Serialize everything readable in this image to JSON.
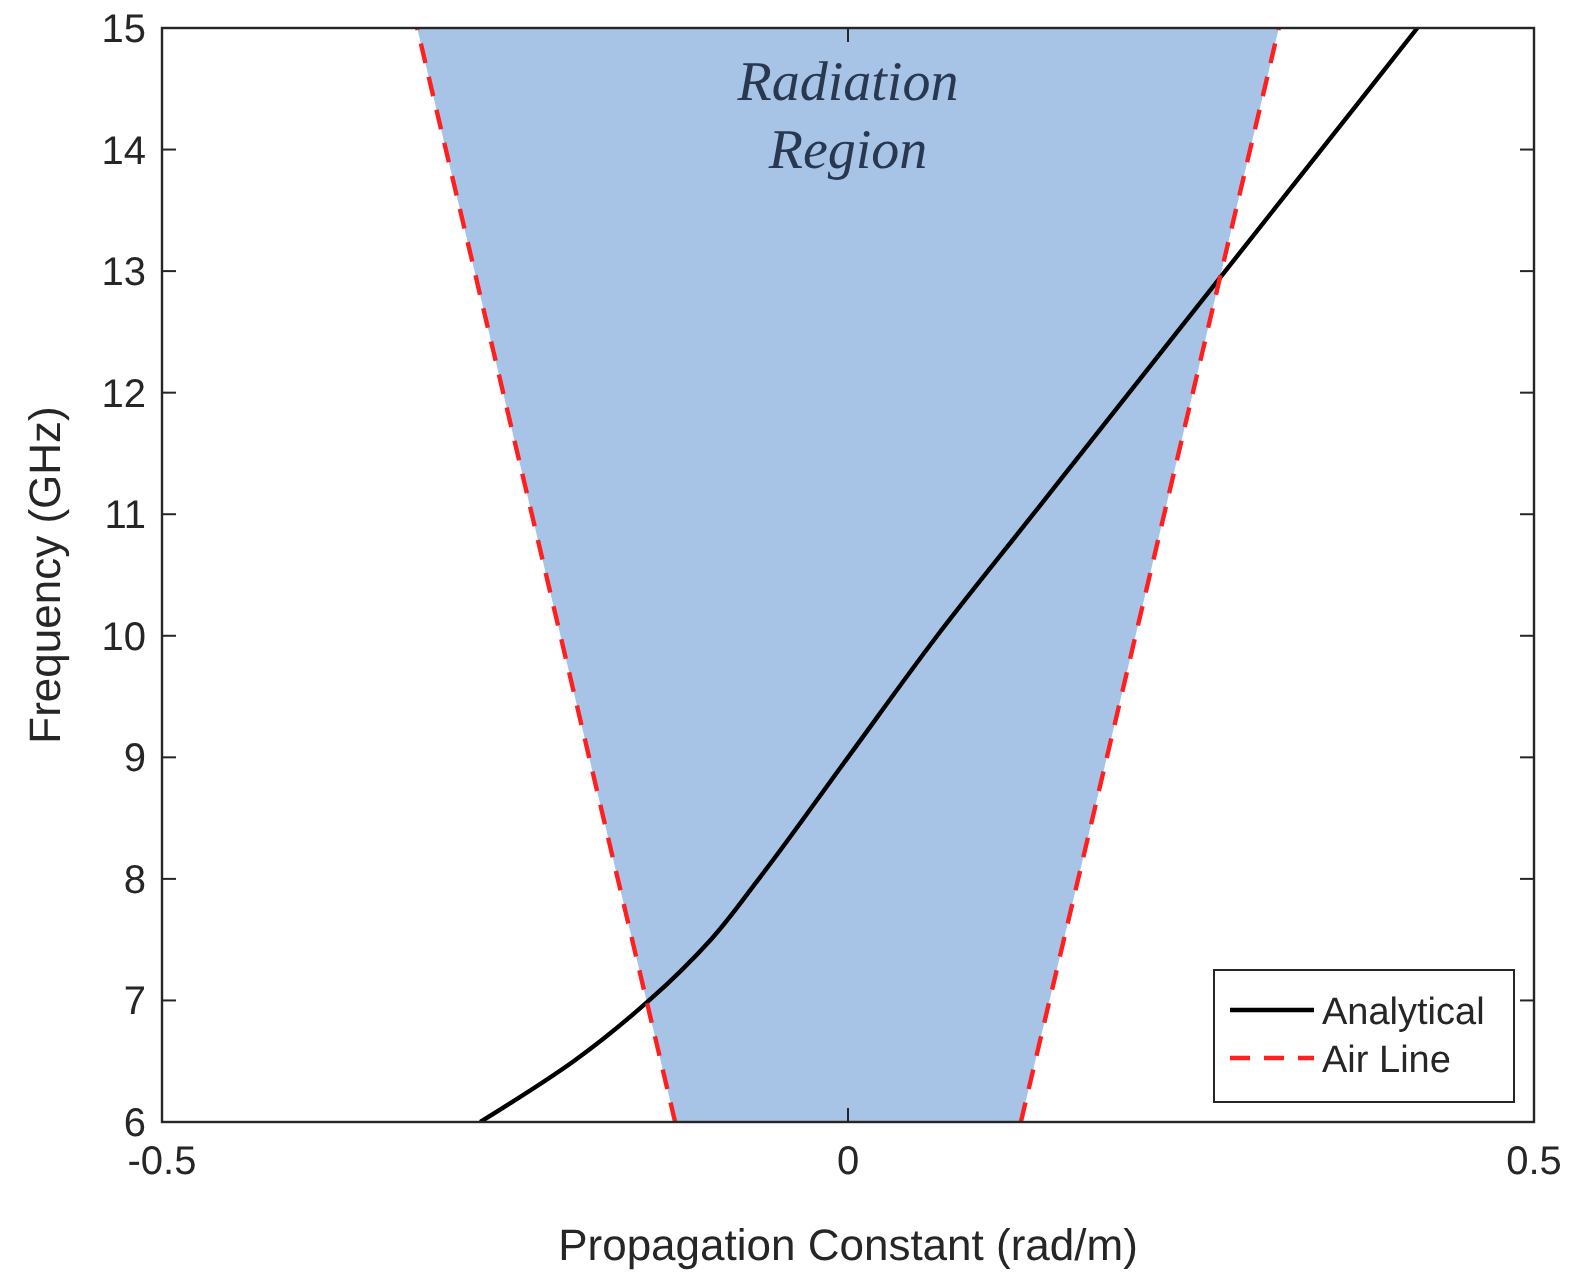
{
  "chart_data": {
    "type": "line",
    "xlabel": "Propagation Constant (rad/m)",
    "ylabel": "Frequency (GHz)",
    "xlim": [
      -0.5,
      0.5
    ],
    "xticks": [
      -0.5,
      0,
      0.5
    ],
    "ylim": [
      6,
      15
    ],
    "yticks": [
      6,
      7,
      8,
      9,
      10,
      11,
      12,
      13,
      14,
      15
    ],
    "grid": false,
    "legend": "bottom right",
    "marker": "none",
    "annotations": [
      "Radiation Region"
    ],
    "series": [
      {
        "type": "area",
        "color": "#a7c3e6",
        "x": [
          -0.314,
          -0.126,
          0.126,
          0.314
        ],
        "values": [
          15,
          6,
          6,
          15
        ]
      },
      {
        "name": "Analytical",
        "color": "#000000",
        "line_style": "solid",
        "x": [
          -0.268,
          -0.2,
          -0.145,
          -0.1,
          -0.065,
          0.0,
          0.065,
          0.135,
          0.205,
          0.275,
          0.345,
          0.415
        ],
        "values": [
          6,
          6.5,
          7,
          7.5,
          8,
          9,
          10,
          11,
          12,
          13,
          14,
          15
        ]
      },
      {
        "name": "Air Line",
        "color": "#ff1f1f",
        "line_style": "dashed",
        "x": [
          0.126,
          0.314
        ],
        "values": [
          6,
          15
        ]
      },
      {
        "color": "#ff1f1f",
        "line_style": "dashed",
        "x": [
          -0.126,
          -0.314
        ],
        "values": [
          6,
          15
        ]
      }
    ]
  }
}
